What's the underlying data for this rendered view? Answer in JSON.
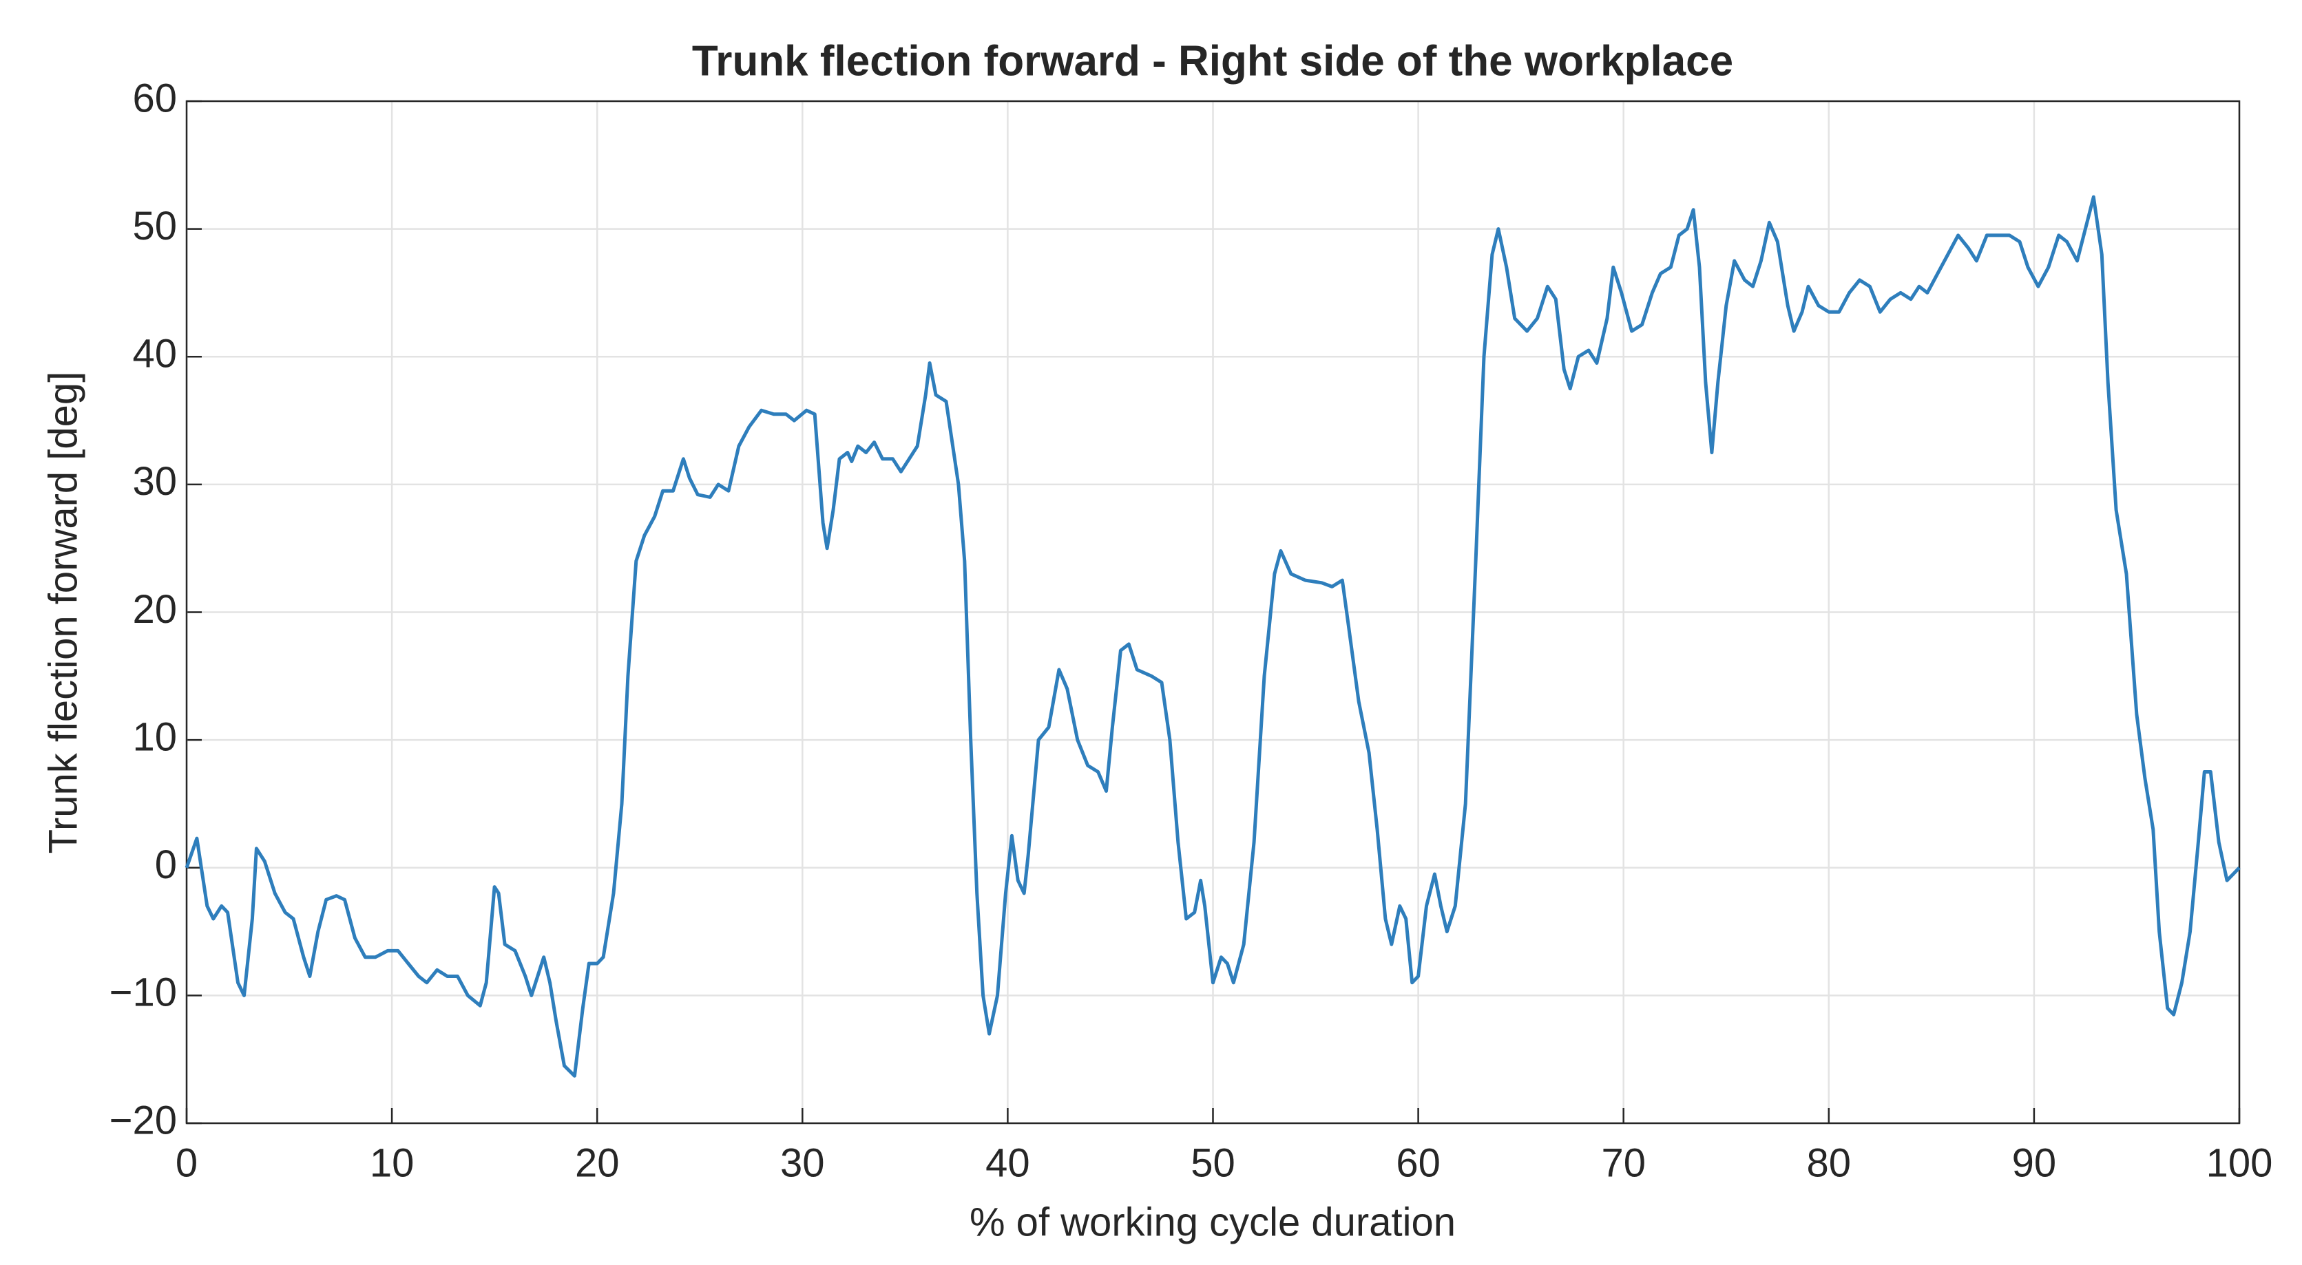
{
  "chart_data": {
    "type": "line",
    "title": "Trunk flection forward - Right side of the workplace",
    "xlabel": "% of working cycle duration",
    "ylabel": "Trunk flection forward [deg]",
    "xlim": [
      0,
      100
    ],
    "xticks": [
      0,
      10,
      20,
      30,
      40,
      50,
      60,
      70,
      80,
      90,
      100
    ],
    "ylim": [
      -20,
      60
    ],
    "yticks": [
      {
        "value": -20,
        "label": "−20"
      },
      {
        "value": -10,
        "label": "−10"
      },
      0,
      10,
      20,
      30,
      40,
      50,
      60
    ],
    "grid": true,
    "series": [
      {
        "name": "Trunk flection forward",
        "color": "#2e7ebc",
        "x": [
          0,
          0.5,
          1,
          1.3,
          1.7,
          2,
          2.5,
          2.8,
          3.2,
          3.4,
          3.8,
          4.3,
          4.8,
          5.2,
          5.7,
          6,
          6.4,
          6.8,
          7.3,
          7.7,
          8.2,
          8.7,
          9.2,
          9.8,
          10.3,
          10.8,
          11.3,
          11.7,
          12.2,
          12.7,
          13.2,
          13.7,
          14.3,
          14.6,
          15,
          15.2,
          15.5,
          16,
          16.5,
          16.8,
          17.2,
          17.4,
          17.7,
          18,
          18.4,
          18.9,
          19.3,
          19.6,
          20,
          20.3,
          20.8,
          21.2,
          21.5,
          21.9,
          22.3,
          22.8,
          23.2,
          23.7,
          24.2,
          24.5,
          24.9,
          25.5,
          25.9,
          26.4,
          26.9,
          27.4,
          28,
          28.6,
          29.2,
          29.6,
          30.2,
          30.6,
          31,
          31.2,
          31.5,
          31.8,
          32.2,
          32.4,
          32.7,
          33.1,
          33.5,
          33.9,
          34.4,
          34.8,
          35.2,
          35.6,
          36,
          36.2,
          36.5,
          37,
          37.6,
          37.9,
          38.2,
          38.5,
          38.8,
          39.1,
          39.5,
          39.9,
          40.2,
          40.5,
          40.8,
          41,
          41.5,
          42,
          42.5,
          42.9,
          43.4,
          43.9,
          44.4,
          44.8,
          45.1,
          45.5,
          45.9,
          46.3,
          47,
          47.5,
          47.9,
          48.3,
          48.7,
          49.1,
          49.4,
          49.6,
          50,
          50.4,
          50.7,
          51,
          51.5,
          52,
          52.5,
          53,
          53.3,
          53.8,
          54.5,
          55.3,
          55.8,
          56.3,
          56.6,
          57.1,
          57.6,
          58,
          58.4,
          58.7,
          59.1,
          59.4,
          59.7,
          60,
          60.4,
          60.8,
          61.1,
          61.4,
          61.8,
          62.3,
          62.8,
          63.2,
          63.6,
          63.9,
          64.3,
          64.7,
          65.3,
          65.8,
          66.3,
          66.7,
          67.1,
          67.4,
          67.8,
          68.3,
          68.7,
          69.2,
          69.5,
          69.9,
          70.4,
          70.9,
          71.4,
          71.8,
          72.3,
          72.7,
          73.1,
          73.4,
          73.7,
          74,
          74.3,
          74.6,
          75,
          75.4,
          75.9,
          76.3,
          76.7,
          77.1,
          77.5,
          78,
          78.3,
          78.7,
          79,
          79.5,
          80,
          80.5,
          81,
          81.5,
          82,
          82.5,
          83,
          83.5,
          84,
          84.4,
          84.8,
          85.3,
          85.8,
          86.3,
          86.8,
          87.2,
          87.7,
          88.2,
          88.8,
          89.3,
          89.7,
          90.2,
          90.7,
          91.2,
          91.6,
          92.1,
          92.5,
          92.9,
          93.3,
          93.6,
          94,
          94.5,
          95,
          95.4,
          95.8,
          96.1,
          96.5,
          96.8,
          97.2,
          97.6,
          98,
          98.3,
          98.6,
          99,
          99.4,
          99.7,
          100
        ],
        "values": [
          0,
          2.3,
          -3,
          -4,
          -3,
          -3.5,
          -9,
          -10,
          -4,
          1.5,
          0.5,
          -2,
          -3.5,
          -4,
          -7,
          -8.5,
          -5,
          -2.5,
          -2.2,
          -2.5,
          -5.5,
          -7,
          -7,
          -6.5,
          -6.5,
          -7.5,
          -8.5,
          -9,
          -8,
          -8.5,
          -8.5,
          -10,
          -10.8,
          -9,
          -1.5,
          -2,
          -6,
          -6.5,
          -8.5,
          -10,
          -8,
          -7,
          -9,
          -12,
          -15.5,
          -16.3,
          -11,
          -7.5,
          -7.5,
          -7,
          -2,
          5,
          15,
          24,
          26,
          27.5,
          29.5,
          29.5,
          32,
          30.5,
          29.2,
          29,
          30,
          29.5,
          33,
          34.5,
          35.8,
          35.5,
          35.5,
          35,
          35.8,
          35.5,
          27,
          25,
          28,
          32,
          32.5,
          31.8,
          33,
          32.5,
          33.3,
          32,
          32,
          31,
          32,
          33,
          37,
          39.5,
          37,
          36.5,
          30,
          24,
          10,
          -2,
          -10,
          -13,
          -10,
          -2,
          2.5,
          -1,
          -2,
          1,
          10,
          11,
          15.5,
          14,
          10,
          8,
          7.5,
          6,
          11,
          17,
          17.5,
          15.5,
          15,
          14.5,
          10,
          2,
          -4,
          -3.5,
          -1,
          -3,
          -9,
          -7,
          -7.5,
          -9,
          -6,
          2,
          15,
          23,
          24.8,
          23,
          22.5,
          22.3,
          22,
          22.5,
          19,
          13,
          9,
          3,
          -4,
          -6,
          -3,
          -4,
          -9,
          -8.5,
          -3,
          -0.5,
          -3,
          -5,
          -3,
          5,
          24,
          40,
          48,
          50,
          47,
          43,
          42,
          43,
          45.5,
          44.5,
          39,
          37.5,
          40,
          40.5,
          39.5,
          43,
          47,
          45,
          42,
          42.5,
          45,
          46.5,
          47,
          49.5,
          50,
          51.5,
          47,
          38,
          32.5,
          38,
          44,
          47.5,
          46,
          45.5,
          47.5,
          50.5,
          49,
          44,
          42,
          43.5,
          45.5,
          44,
          43.5,
          43.5,
          45,
          46,
          45.5,
          43.5,
          44.5,
          45,
          44.5,
          45.5,
          45,
          46.5,
          48,
          49.5,
          48.5,
          47.5,
          49.5,
          49.5,
          49.5,
          49,
          47,
          45.5,
          47,
          49.5,
          49,
          47.5,
          50,
          52.5,
          48,
          38,
          28,
          23,
          12,
          7,
          3,
          -5,
          -11,
          -11.5,
          -9,
          -5,
          2,
          7.5,
          7.5,
          2,
          -1,
          -0.5,
          0
        ]
      }
    ]
  }
}
